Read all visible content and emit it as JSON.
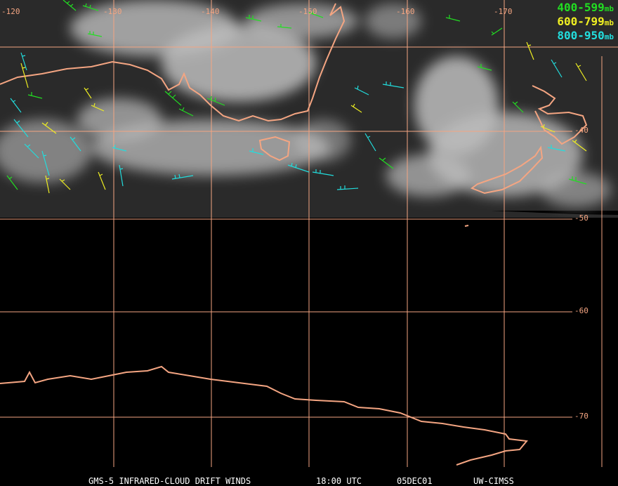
{
  "map": {
    "lon_labels": [
      "-120",
      "-130",
      "-140",
      "-150",
      "-160",
      "-170"
    ],
    "lat_labels": [
      "-40",
      "-50",
      "-60",
      "-70"
    ],
    "colors": {
      "coast": "#f4a582",
      "grid": "#f4a582",
      "band_400_599": "#22dd22",
      "band_600_799": "#eeee22",
      "band_800_950": "#22dddd",
      "caption": "#ffffff"
    }
  },
  "legend": [
    {
      "range": "400-599",
      "unit": "mb",
      "color": "#22dd22"
    },
    {
      "range": "600-799",
      "unit": "mb",
      "color": "#eeee22"
    },
    {
      "range": "800-950",
      "unit": "mb",
      "color": "#22dddd"
    }
  ],
  "caption": {
    "product": "GMS-5 INFRARED-CLOUD DRIFT WINDS",
    "time": "18:00 UTC",
    "date": "05DEC01",
    "source": "UW-CIMSS"
  }
}
